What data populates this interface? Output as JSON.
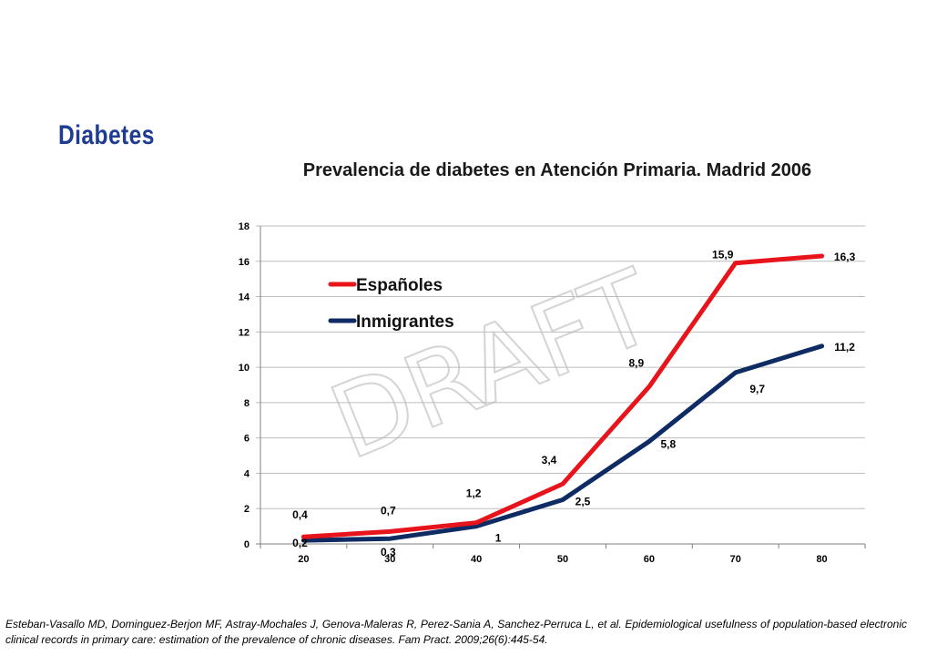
{
  "slide": {
    "heading": "Diabetes",
    "watermark": "DRAFT",
    "citation": "Esteban-Vasallo MD, Dominguez-Berjon MF, Astray-Mochales J, Genova-Maleras R, Perez-Sania A, Sanchez-Perruca L, et al. Epidemiological usefulness of population-based electronic clinical records in primary care: estimation of the prevalence of chronic diseases. Fam Pract. 2009;26(6):445-54."
  },
  "chart_data": {
    "type": "line",
    "title": "Prevalencia de diabetes en Atención Primaria.  Madrid 2006",
    "xlabel": "",
    "ylabel": "",
    "x": [
      20,
      30,
      40,
      50,
      60,
      70,
      80
    ],
    "ylim": [
      0,
      18
    ],
    "yticks": [
      0,
      2,
      4,
      6,
      8,
      10,
      12,
      14,
      16,
      18
    ],
    "grid": "horizontal",
    "legend_position": "top-left",
    "series": [
      {
        "name": "Españoles",
        "color": "#e8141b",
        "values": [
          0.4,
          0.7,
          1.2,
          3.4,
          8.9,
          15.9,
          16.3
        ],
        "labels": [
          "0,4",
          "0,7",
          "1,2",
          "3,4",
          "8,9",
          "15,9",
          "16,3"
        ]
      },
      {
        "name": "Inmigrantes",
        "color": "#0f2b63",
        "values": [
          0.2,
          0.3,
          1,
          2.5,
          5.8,
          9.7,
          11.2
        ],
        "labels": [
          "0,2",
          "0,3",
          "1",
          "2,5",
          "5,8",
          "9,7",
          "11,2"
        ]
      }
    ]
  }
}
